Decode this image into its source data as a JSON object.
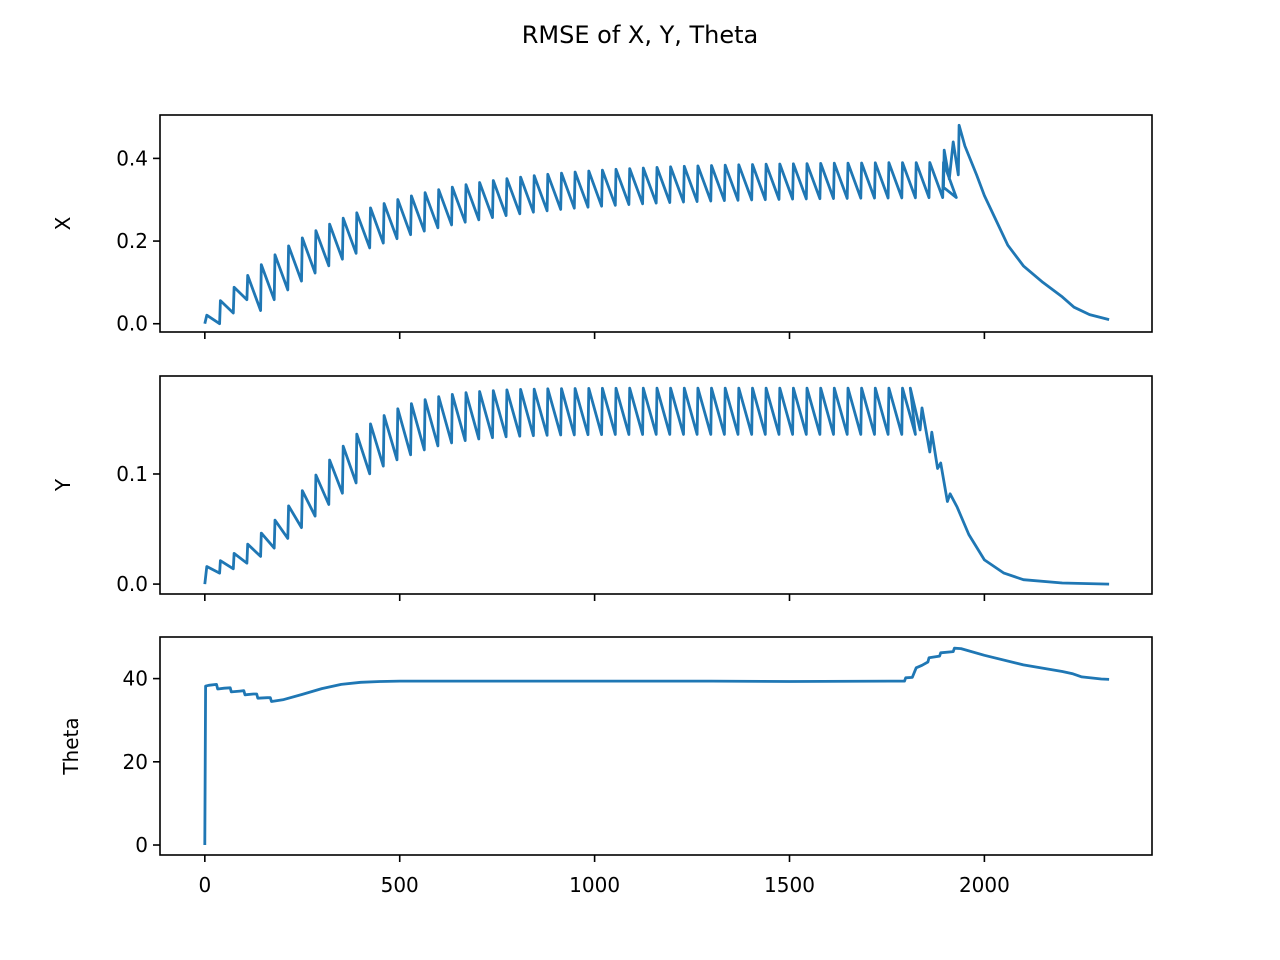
{
  "chart_data": {
    "type": "line",
    "title": "RMSE of X, Y, Theta",
    "line_color": "#1f77b4",
    "grid": false,
    "legend": "none",
    "x_shared": true,
    "xlim": [
      -115,
      2430
    ],
    "xticks": [
      0,
      500,
      1000,
      1500,
      2000
    ],
    "xtick_labels": [
      "0",
      "500",
      "1000",
      "1500",
      "2000"
    ],
    "subplots": [
      {
        "id": "x",
        "ylabel": "X",
        "ylim": [
          -0.02,
          0.505
        ],
        "yticks": [
          0.0,
          0.2,
          0.4
        ],
        "ytick_labels": [
          "0.0",
          "0.2",
          "0.4"
        ],
        "show_x_tick_labels": false,
        "series": [
          {
            "generator": "sawtooth_x"
          }
        ]
      },
      {
        "id": "y",
        "ylabel": "Y",
        "ylim": [
          -0.009,
          0.189
        ],
        "yticks": [
          0.0,
          0.1
        ],
        "ytick_labels": [
          "0.0",
          "0.1"
        ],
        "show_x_tick_labels": false,
        "series": [
          {
            "generator": "sawtooth_y"
          }
        ]
      },
      {
        "id": "theta",
        "ylabel": "Theta",
        "ylim": [
          -2.4,
          50.0
        ],
        "yticks": [
          0,
          20,
          40
        ],
        "ytick_labels": [
          "0",
          "20",
          "40"
        ],
        "show_x_tick_labels": true,
        "series": [
          {
            "points": [
              [
                0,
                0
              ],
              [
                2,
                38.2
              ],
              [
                10,
                38.4
              ],
              [
                30,
                38.6
              ],
              [
                33,
                37.5
              ],
              [
                50,
                37.7
              ],
              [
                65,
                37.8
              ],
              [
                68,
                36.8
              ],
              [
                90,
                37.0
              ],
              [
                100,
                37.1
              ],
              [
                103,
                36.1
              ],
              [
                125,
                36.3
              ],
              [
                133,
                36.3
              ],
              [
                136,
                35.3
              ],
              [
                160,
                35.4
              ],
              [
                168,
                35.4
              ],
              [
                171,
                34.5
              ],
              [
                200,
                34.9
              ],
              [
                250,
                36.2
              ],
              [
                300,
                37.6
              ],
              [
                350,
                38.6
              ],
              [
                400,
                39.1
              ],
              [
                450,
                39.3
              ],
              [
                500,
                39.4
              ],
              [
                700,
                39.4
              ],
              [
                1000,
                39.4
              ],
              [
                1300,
                39.4
              ],
              [
                1500,
                39.3
              ],
              [
                1795,
                39.4
              ],
              [
                1798,
                40.2
              ],
              [
                1815,
                40.3
              ],
              [
                1825,
                42.6
              ],
              [
                1840,
                43.2
              ],
              [
                1855,
                44.0
              ],
              [
                1858,
                45.0
              ],
              [
                1885,
                45.4
              ],
              [
                1888,
                46.2
              ],
              [
                1920,
                46.5
              ],
              [
                1923,
                47.3
              ],
              [
                1940,
                47.2
              ],
              [
                2000,
                45.6
              ],
              [
                2100,
                43.3
              ],
              [
                2200,
                41.7
              ],
              [
                2225,
                41.2
              ],
              [
                2250,
                40.4
              ],
              [
                2300,
                39.9
              ],
              [
                2320,
                39.8
              ]
            ]
          }
        ]
      }
    ]
  }
}
